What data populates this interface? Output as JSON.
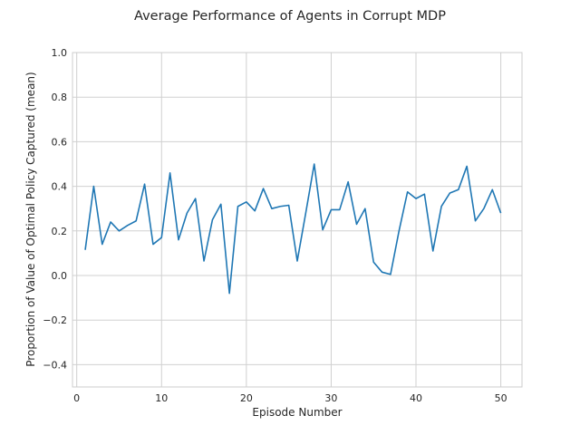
{
  "chart_data": {
    "type": "line",
    "title": "Average Performance of Agents in Corrupt MDP",
    "xlabel": "Episode Number",
    "ylabel": "Proportion of Value of Optimal Policy Captured (mean)",
    "xlim": [
      -0.5,
      52.5
    ],
    "ylim": [
      -0.5,
      1.0
    ],
    "xticks": [
      0,
      10,
      20,
      30,
      40,
      50
    ],
    "yticks": [
      -0.4,
      -0.2,
      0.0,
      0.2,
      0.4,
      0.6,
      0.8,
      1.0
    ],
    "xtick_labels": [
      "0",
      "10",
      "20",
      "30",
      "40",
      "50"
    ],
    "ytick_labels": [
      "−0.4",
      "−0.2",
      "0.0",
      "0.2",
      "0.4",
      "0.6",
      "0.8",
      "1.0"
    ],
    "grid": true,
    "series": [
      {
        "color": "#1f77b4",
        "x": [
          1,
          2,
          3,
          4,
          5,
          6,
          7,
          8,
          9,
          10,
          11,
          12,
          13,
          14,
          15,
          16,
          17,
          18,
          19,
          20,
          21,
          22,
          23,
          24,
          25,
          26,
          27,
          28,
          29,
          30,
          31,
          32,
          33,
          34,
          35,
          36,
          37,
          38,
          39,
          40,
          41,
          42,
          43,
          44,
          45,
          46,
          47,
          48,
          49,
          50
        ],
        "values": [
          0.115,
          0.4,
          0.14,
          0.24,
          0.2,
          0.225,
          0.245,
          0.41,
          0.14,
          0.17,
          0.46,
          0.16,
          0.28,
          0.345,
          0.065,
          0.25,
          0.32,
          -0.08,
          0.31,
          0.33,
          0.29,
          0.39,
          0.3,
          0.31,
          0.315,
          0.065,
          0.28,
          0.5,
          0.205,
          0.295,
          0.295,
          0.42,
          0.23,
          0.3,
          0.06,
          0.015,
          0.005,
          0.2,
          0.375,
          0.345,
          0.365,
          0.11,
          0.31,
          0.37,
          0.385,
          0.49,
          0.245,
          0.3,
          0.385,
          0.28
        ]
      }
    ]
  }
}
